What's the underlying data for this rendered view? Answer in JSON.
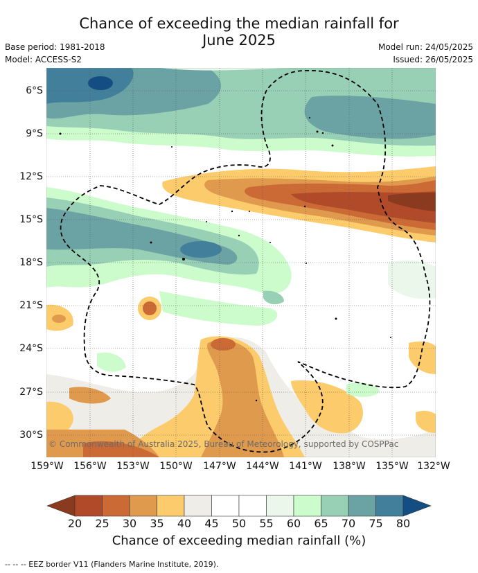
{
  "title_line1": "Chance of exceeding the median rainfall for",
  "title_line2": "June 2025",
  "base_period": "Base period: 1981-2018",
  "model": "Model: ACCESS-S2",
  "model_run": "Model run: 24/05/2025",
  "issued": "Issued: 26/05/2025",
  "latitudes": [
    "6°S",
    "9°S",
    "12°S",
    "15°S",
    "18°S",
    "21°S",
    "24°S",
    "27°S",
    "30°S"
  ],
  "longitudes": [
    "159°W",
    "156°W",
    "153°W",
    "150°W",
    "147°W",
    "144°W",
    "141°W",
    "138°W",
    "135°W",
    "132°W"
  ],
  "copyright": "© Commonwealth of Australia 2025, Bureau of Meteorology, supported by COSPPac",
  "colorbar": {
    "ticks": [
      "20",
      "25",
      "30",
      "35",
      "40",
      "45",
      "50",
      "55",
      "60",
      "65",
      "70",
      "75",
      "80"
    ],
    "colors": [
      "#8a3a1f",
      "#b14a28",
      "#cc6a35",
      "#e09a4e",
      "#fccb6c",
      "#efede8",
      "#ffffff",
      "#ffffff",
      "#eaf7ea",
      "#ccfccc",
      "#98d0b5",
      "#6ba3a5",
      "#427f9a",
      "#134d82"
    ],
    "title": "Chance of exceeding median rainfall (%)"
  },
  "footer": "--  --  -- EEZ border V11 (Flanders Marine Institute, 2019)."
}
